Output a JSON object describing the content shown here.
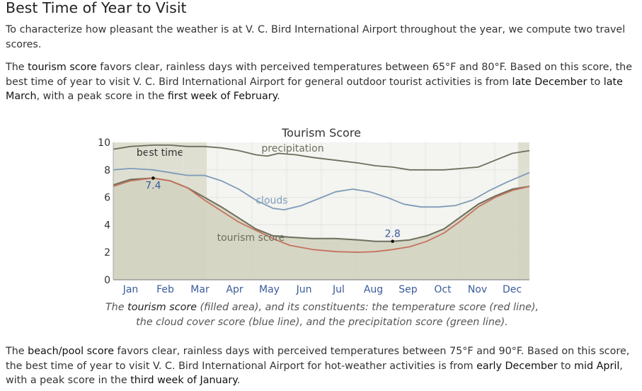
{
  "page": {
    "title": "Best Time of Year to Visit",
    "intro": "To characterize how pleasant the weather is at V. C. Bird International Airport throughout the year, we compute two travel scores.",
    "tourism_para": {
      "p1": "The ",
      "k1": "tourism score",
      "p2": " favors clear, rainless days with perceived temperatures between 65°F and 80°F. Based on this score, the best time of year to visit V. C. Bird International Airport for general outdoor tourist activities is from ",
      "k2": "late December",
      "p3": " to ",
      "k3": "late March",
      "p4": ", with a peak score in the ",
      "k4": "first week of February",
      "p5": "."
    },
    "caption": {
      "c1": "The ",
      "k1": "tourism score",
      "c2": " (filled area), and its constituents: the temperature score (red line), the cloud cover score (blue line), and the precipitation score (green line)."
    },
    "beach_para": {
      "p1": "The ",
      "k1": "beach/pool score",
      "p2": " favors clear, rainless days with perceived temperatures between 75°F and 90°F. Based on this score, the best time of year to visit V. C. Bird International Airport for hot-weather activities is from ",
      "k2": "early December",
      "p3": " to ",
      "k3": "mid April",
      "p4": ", with a peak score in the ",
      "k4": "third week of January",
      "p5": "."
    }
  },
  "chart_data": {
    "type": "area",
    "title": "Tourism Score",
    "x_unit": "day of year",
    "ylim": [
      0,
      10
    ],
    "yticks": [
      0,
      2,
      4,
      6,
      8,
      10
    ],
    "months": [
      "Jan",
      "Feb",
      "Mar",
      "Apr",
      "May",
      "Jun",
      "Jul",
      "Aug",
      "Sep",
      "Oct",
      "Nov",
      "Dec"
    ],
    "best_time_label": "best time",
    "best_time_ranges": [
      [
        0,
        82
      ],
      [
        355,
        365
      ]
    ],
    "series": [
      {
        "name": "tourism score",
        "style": "area",
        "color": "#6e6e5e",
        "fill": "#d3d3c1",
        "points": [
          [
            0,
            6.9
          ],
          [
            15,
            7.3
          ],
          [
            35,
            7.4
          ],
          [
            50,
            7.2
          ],
          [
            65,
            6.7
          ],
          [
            80,
            6.0
          ],
          [
            95,
            5.3
          ],
          [
            110,
            4.5
          ],
          [
            125,
            3.7
          ],
          [
            140,
            3.2
          ],
          [
            155,
            3.1
          ],
          [
            175,
            3.0
          ],
          [
            195,
            3.0
          ],
          [
            215,
            2.9
          ],
          [
            230,
            2.8
          ],
          [
            245,
            2.8
          ],
          [
            260,
            2.9
          ],
          [
            275,
            3.2
          ],
          [
            290,
            3.7
          ],
          [
            305,
            4.6
          ],
          [
            320,
            5.5
          ],
          [
            335,
            6.1
          ],
          [
            350,
            6.6
          ],
          [
            365,
            6.8
          ]
        ]
      },
      {
        "name": "temperature score",
        "style": "line",
        "color": "#c6735c",
        "points": [
          [
            0,
            6.8
          ],
          [
            15,
            7.2
          ],
          [
            35,
            7.4
          ],
          [
            50,
            7.2
          ],
          [
            65,
            6.7
          ],
          [
            80,
            5.8
          ],
          [
            95,
            5.0
          ],
          [
            110,
            4.2
          ],
          [
            125,
            3.6
          ],
          [
            140,
            3.0
          ],
          [
            155,
            2.5
          ],
          [
            175,
            2.2
          ],
          [
            195,
            2.05
          ],
          [
            215,
            2.0
          ],
          [
            230,
            2.05
          ],
          [
            245,
            2.2
          ],
          [
            260,
            2.4
          ],
          [
            275,
            2.8
          ],
          [
            290,
            3.4
          ],
          [
            305,
            4.3
          ],
          [
            320,
            5.3
          ],
          [
            335,
            6.0
          ],
          [
            350,
            6.5
          ],
          [
            365,
            6.8
          ]
        ]
      },
      {
        "name": "clouds",
        "style": "line",
        "color": "#7f9bb8",
        "points": [
          [
            0,
            8.0
          ],
          [
            15,
            8.1
          ],
          [
            35,
            8.0
          ],
          [
            50,
            7.8
          ],
          [
            65,
            7.6
          ],
          [
            80,
            7.6
          ],
          [
            95,
            7.2
          ],
          [
            110,
            6.6
          ],
          [
            125,
            5.8
          ],
          [
            140,
            5.2
          ],
          [
            150,
            5.1
          ],
          [
            165,
            5.4
          ],
          [
            180,
            5.9
          ],
          [
            195,
            6.4
          ],
          [
            210,
            6.6
          ],
          [
            225,
            6.4
          ],
          [
            240,
            6.0
          ],
          [
            255,
            5.5
          ],
          [
            270,
            5.3
          ],
          [
            285,
            5.3
          ],
          [
            300,
            5.4
          ],
          [
            315,
            5.8
          ],
          [
            330,
            6.5
          ],
          [
            345,
            7.1
          ],
          [
            365,
            7.8
          ]
        ]
      },
      {
        "name": "precipitation",
        "style": "line",
        "color": "#6e6e5e",
        "points": [
          [
            0,
            9.5
          ],
          [
            15,
            9.7
          ],
          [
            35,
            9.8
          ],
          [
            50,
            9.8
          ],
          [
            65,
            9.7
          ],
          [
            80,
            9.7
          ],
          [
            95,
            9.6
          ],
          [
            110,
            9.4
          ],
          [
            125,
            9.1
          ],
          [
            135,
            9.0
          ],
          [
            145,
            9.2
          ],
          [
            160,
            9.1
          ],
          [
            175,
            8.9
          ],
          [
            195,
            8.7
          ],
          [
            215,
            8.5
          ],
          [
            230,
            8.3
          ],
          [
            245,
            8.2
          ],
          [
            260,
            8.0
          ],
          [
            275,
            8.0
          ],
          [
            290,
            8.0
          ],
          [
            305,
            8.1
          ],
          [
            320,
            8.2
          ],
          [
            335,
            8.7
          ],
          [
            350,
            9.2
          ],
          [
            365,
            9.4
          ]
        ]
      }
    ],
    "annotations": [
      {
        "label": "7.4",
        "x": 35,
        "y": 7.4
      },
      {
        "label": "2.8",
        "x": 245,
        "y": 2.8
      }
    ],
    "series_labels": [
      {
        "text": "precipitation",
        "x": 130,
        "y": 9.6,
        "color": "#6e6e5e"
      },
      {
        "text": "clouds",
        "x": 125,
        "y": 5.8,
        "color": "#7f9bb8"
      },
      {
        "text": "tourism score",
        "x": 91,
        "y": 3.1,
        "color": "#6e6e5e"
      }
    ],
    "colors": {
      "month_labels": "#3b5b9a",
      "best_time_band": "#dedfd0",
      "grid": "#e6e6e6"
    }
  }
}
